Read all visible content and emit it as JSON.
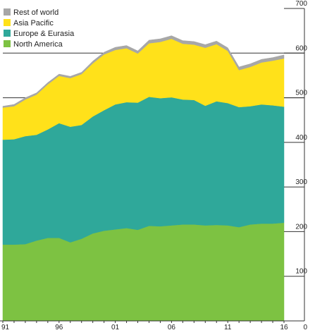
{
  "chart_data": {
    "type": "area",
    "stacked": true,
    "x": [
      1991,
      1992,
      1993,
      1994,
      1995,
      1996,
      1997,
      1998,
      1999,
      2000,
      2001,
      2002,
      2003,
      2004,
      2005,
      2006,
      2007,
      2008,
      2009,
      2010,
      2011,
      2012,
      2013,
      2014,
      2015,
      2016
    ],
    "x_tick_labels": [
      "91",
      "96",
      "01",
      "06",
      "11",
      "16"
    ],
    "x_tick_values": [
      1991,
      1996,
      2001,
      2006,
      2011,
      2016
    ],
    "y_tick_labels": [
      "0",
      "100",
      "200",
      "300",
      "400",
      "500",
      "600",
      "700"
    ],
    "ylim": [
      0,
      700
    ],
    "y_axis_position": "right",
    "grid": "partial horizontal lines at 500 and 600",
    "legend_position": "top-left",
    "series": [
      {
        "name": "North America",
        "color": "#7dc242",
        "values": [
          171,
          171,
          172,
          180,
          186,
          186,
          176,
          184,
          196,
          202,
          205,
          208,
          204,
          213,
          212,
          214,
          216,
          216,
          214,
          215,
          214,
          210,
          216,
          218,
          218,
          220
        ]
      },
      {
        "name": "Europe & Eurasia",
        "color": "#2fa89a",
        "values": [
          235,
          236,
          242,
          237,
          243,
          257,
          259,
          255,
          262,
          270,
          280,
          282,
          285,
          289,
          287,
          287,
          280,
          279,
          268,
          277,
          274,
          269,
          265,
          267,
          265,
          260
        ]
      },
      {
        "name": "Asia Pacific",
        "color": "#ffe11a",
        "values": [
          72,
          74,
          82,
          90,
          101,
          106,
          109,
          114,
          119,
          125,
          122,
          121,
          110,
          120,
          126,
          131,
          125,
          124,
          130,
          128,
          117,
          83,
          88,
          94,
          100,
          108
        ]
      },
      {
        "name": "Rest of world",
        "color": "#a7a7a7",
        "values": [
          3,
          4,
          4,
          4,
          4,
          4,
          4,
          4,
          5,
          5,
          6,
          6,
          6,
          7,
          7,
          7,
          7,
          7,
          7,
          7,
          7,
          7,
          7,
          7,
          7,
          8
        ]
      }
    ],
    "legend_order": [
      "Rest of world",
      "Asia Pacific",
      "Europe & Eurasia",
      "North America"
    ]
  }
}
